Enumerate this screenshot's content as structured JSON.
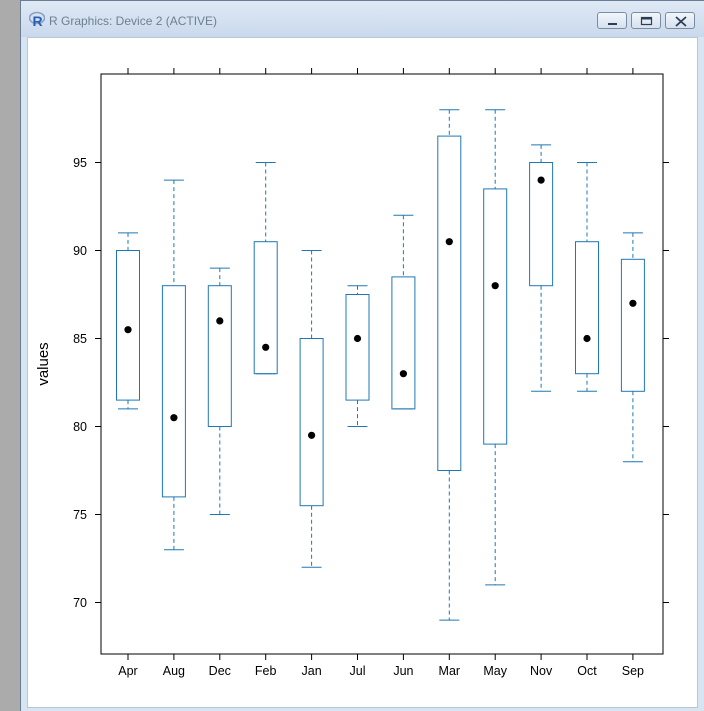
{
  "window": {
    "title": "R Graphics: Device 2 (ACTIVE)",
    "icon": "r-logo-icon",
    "buttons": [
      "minimize-icon",
      "maximize-icon",
      "close-icon"
    ]
  },
  "chart_data": {
    "type": "box",
    "title": "",
    "xlabel": "",
    "ylabel": "values",
    "ylim": [
      67,
      100
    ],
    "yticks": [
      70,
      75,
      80,
      85,
      90,
      95
    ],
    "grid": false,
    "legend": "none",
    "box_color": "#1f78b4",
    "median_color": "#000000",
    "categories": [
      "Apr",
      "Aug",
      "Dec",
      "Feb",
      "Jan",
      "Jul",
      "Jun",
      "Mar",
      "May",
      "Nov",
      "Oct",
      "Sep"
    ],
    "boxes": [
      {
        "label": "Apr",
        "min": 81,
        "q1": 81.5,
        "median": 85.5,
        "q3": 90,
        "max": 91
      },
      {
        "label": "Aug",
        "min": 73,
        "q1": 76,
        "median": 80.5,
        "q3": 88,
        "max": 94
      },
      {
        "label": "Dec",
        "min": 75,
        "q1": 80,
        "median": 86,
        "q3": 88,
        "max": 89
      },
      {
        "label": "Feb",
        "min": 83,
        "q1": 83,
        "median": 84.5,
        "q3": 90.5,
        "max": 95
      },
      {
        "label": "Jan",
        "min": 72,
        "q1": 75.5,
        "median": 79.5,
        "q3": 85,
        "max": 90
      },
      {
        "label": "Jul",
        "min": 80,
        "q1": 81.5,
        "median": 85,
        "q3": 87.5,
        "max": 88
      },
      {
        "label": "Jun",
        "min": 81,
        "q1": 81,
        "median": 83,
        "q3": 88.5,
        "max": 92
      },
      {
        "label": "Mar",
        "min": 69,
        "q1": 77.5,
        "median": 90.5,
        "q3": 96.5,
        "max": 98
      },
      {
        "label": "May",
        "min": 71,
        "q1": 79,
        "median": 88,
        "q3": 93.5,
        "max": 98
      },
      {
        "label": "Nov",
        "min": 82,
        "q1": 88,
        "median": 94,
        "q3": 95,
        "max": 96
      },
      {
        "label": "Oct",
        "min": 82,
        "q1": 83,
        "median": 85,
        "q3": 90.5,
        "max": 95
      },
      {
        "label": "Sep",
        "min": 78,
        "q1": 82,
        "median": 87,
        "q3": 89.5,
        "max": 91
      }
    ]
  }
}
